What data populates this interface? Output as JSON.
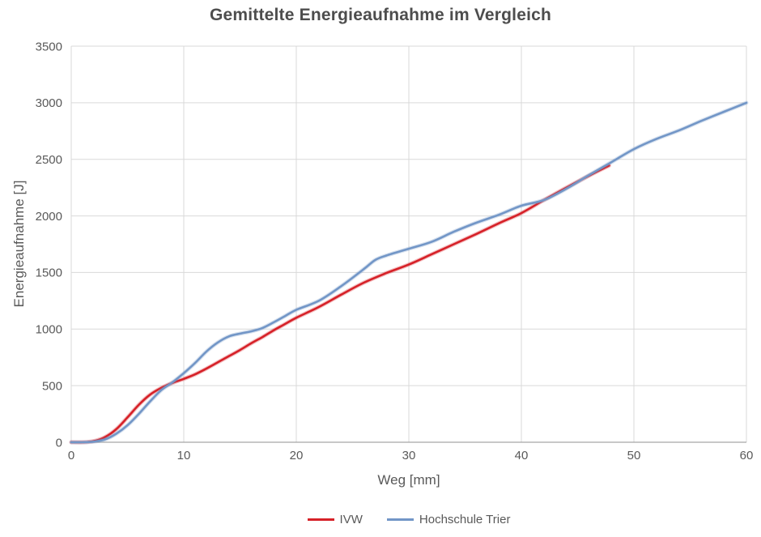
{
  "title": "Gemittelte Energieaufnahme im Vergleich",
  "colors": {
    "title_text": "#4d4d4d",
    "axis_text": "#595959",
    "grid": "#d9d9d9",
    "axis_line": "#a6a6a6",
    "background": "#ffffff",
    "series_red": "#d62128",
    "series_blue": "#7296c7"
  },
  "chart_data": {
    "type": "line",
    "title": "Gemittelte Energieaufnahme im Vergleich",
    "xlabel": "Weg [mm]",
    "ylabel": "Energieaufnahme [J]",
    "xlim": [
      0,
      60
    ],
    "ylim": [
      0,
      3500
    ],
    "x_ticks": [
      0,
      10,
      20,
      30,
      40,
      50,
      60
    ],
    "y_ticks": [
      0,
      500,
      1000,
      1500,
      2000,
      2500,
      3000,
      3500
    ],
    "grid": true,
    "smoothed": true,
    "legend_position": "bottom",
    "series": [
      {
        "name": "IVW",
        "color": "#d62128",
        "points": [
          [
            0,
            0
          ],
          [
            1,
            0
          ],
          [
            2,
            10
          ],
          [
            3,
            45
          ],
          [
            4,
            115
          ],
          [
            5,
            220
          ],
          [
            6,
            330
          ],
          [
            7,
            420
          ],
          [
            8,
            480
          ],
          [
            9,
            525
          ],
          [
            10,
            560
          ],
          [
            11,
            600
          ],
          [
            12,
            650
          ],
          [
            13,
            705
          ],
          [
            14,
            760
          ],
          [
            15,
            815
          ],
          [
            16,
            875
          ],
          [
            17,
            930
          ],
          [
            18,
            990
          ],
          [
            19,
            1045
          ],
          [
            20,
            1100
          ],
          [
            22,
            1195
          ],
          [
            24,
            1305
          ],
          [
            26,
            1410
          ],
          [
            28,
            1495
          ],
          [
            30,
            1570
          ],
          [
            32,
            1660
          ],
          [
            34,
            1750
          ],
          [
            36,
            1840
          ],
          [
            38,
            1935
          ],
          [
            40,
            2025
          ],
          [
            42,
            2140
          ],
          [
            44,
            2250
          ],
          [
            46,
            2355
          ],
          [
            47.8,
            2445
          ]
        ]
      },
      {
        "name": "Hochschule Trier",
        "color": "#7296c7",
        "points": [
          [
            0,
            0
          ],
          [
            1,
            0
          ],
          [
            2,
            5
          ],
          [
            3,
            25
          ],
          [
            4,
            75
          ],
          [
            5,
            150
          ],
          [
            6,
            250
          ],
          [
            7,
            360
          ],
          [
            8,
            460
          ],
          [
            9,
            530
          ],
          [
            10,
            610
          ],
          [
            11,
            700
          ],
          [
            12,
            800
          ],
          [
            13,
            880
          ],
          [
            14,
            935
          ],
          [
            15,
            960
          ],
          [
            16,
            980
          ],
          [
            17,
            1010
          ],
          [
            18,
            1060
          ],
          [
            19,
            1115
          ],
          [
            20,
            1170
          ],
          [
            22,
            1250
          ],
          [
            24,
            1380
          ],
          [
            26,
            1530
          ],
          [
            27,
            1610
          ],
          [
            28,
            1650
          ],
          [
            30,
            1710
          ],
          [
            32,
            1770
          ],
          [
            34,
            1860
          ],
          [
            36,
            1940
          ],
          [
            38,
            2010
          ],
          [
            40,
            2090
          ],
          [
            42,
            2140
          ],
          [
            44,
            2240
          ],
          [
            46,
            2360
          ],
          [
            48,
            2475
          ],
          [
            50,
            2590
          ],
          [
            52,
            2680
          ],
          [
            54,
            2755
          ],
          [
            56,
            2840
          ],
          [
            58,
            2920
          ],
          [
            60,
            3000
          ]
        ]
      }
    ]
  }
}
